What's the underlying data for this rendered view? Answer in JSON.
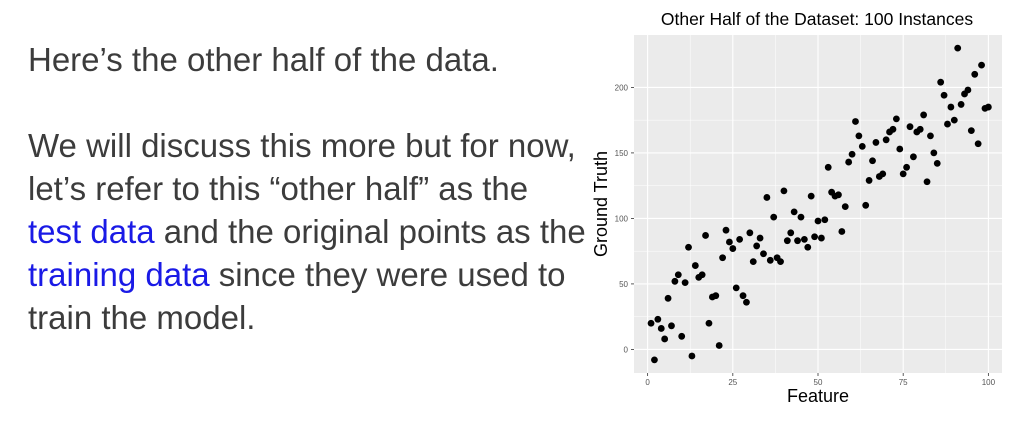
{
  "slide": {
    "intro": "Here’s the other half of the data.",
    "para_before_test": "We will discuss this more but for now, let’s refer to this “other half” as the ",
    "test_link": "test data",
    "para_middle": " and the original points as the ",
    "training_link": "training data",
    "para_after": " since they were used to train the model."
  },
  "colors": {
    "text": "#3c3c3c",
    "link": "#1a1ae6",
    "panel_bg": "#ebebeb",
    "grid": "#ffffff",
    "point": "#000000"
  },
  "chart_data": {
    "type": "scatter",
    "title": "Other Half of the Dataset: 100 Instances",
    "xlabel": "Feature",
    "ylabel": "Ground Truth",
    "xlim": [
      -4,
      104
    ],
    "ylim": [
      -18,
      240
    ],
    "xticks": [
      0,
      25,
      50,
      75,
      100
    ],
    "xtick_labels": [
      "0",
      "25",
      "50",
      "75",
      "100"
    ],
    "yticks": [
      0,
      50,
      100,
      150,
      200
    ],
    "ytick_labels": [
      "0",
      "50",
      "100",
      "150",
      "200"
    ],
    "grid": true,
    "x": [
      1,
      2,
      3,
      4,
      5,
      6,
      7,
      8,
      9,
      10,
      11,
      12,
      13,
      14,
      15,
      16,
      17,
      18,
      19,
      20,
      21,
      22,
      23,
      24,
      25,
      26,
      27,
      28,
      29,
      30,
      31,
      32,
      33,
      34,
      35,
      36,
      37,
      38,
      39,
      40,
      41,
      42,
      43,
      44,
      45,
      46,
      47,
      48,
      49,
      50,
      51,
      52,
      53,
      54,
      55,
      56,
      57,
      58,
      59,
      60,
      61,
      62,
      63,
      64,
      65,
      66,
      67,
      68,
      69,
      70,
      71,
      72,
      73,
      74,
      75,
      76,
      77,
      78,
      79,
      80,
      81,
      82,
      83,
      84,
      85,
      86,
      87,
      88,
      89,
      90,
      91,
      92,
      93,
      94,
      95,
      96,
      97,
      98,
      99,
      100
    ],
    "y": [
      20,
      -8,
      23,
      16,
      8,
      39,
      18,
      52,
      57,
      10,
      51,
      78,
      -5,
      64,
      55,
      57,
      87,
      20,
      40,
      41,
      3,
      70,
      91,
      82,
      77,
      47,
      84,
      41,
      36,
      89,
      67,
      79,
      85,
      73,
      116,
      68,
      101,
      70,
      67,
      121,
      83,
      89,
      105,
      83,
      101,
      84,
      78,
      117,
      86,
      98,
      85,
      99,
      139,
      120,
      117,
      118,
      90,
      109,
      143,
      149,
      174,
      163,
      155,
      110,
      129,
      144,
      158,
      132,
      134,
      160,
      166,
      168,
      176,
      153,
      134,
      139,
      170,
      147,
      166,
      168,
      179,
      128,
      163,
      150,
      142,
      204,
      194,
      172,
      185,
      175,
      230,
      187,
      195,
      198,
      167,
      210,
      157,
      217,
      184,
      185
    ]
  }
}
